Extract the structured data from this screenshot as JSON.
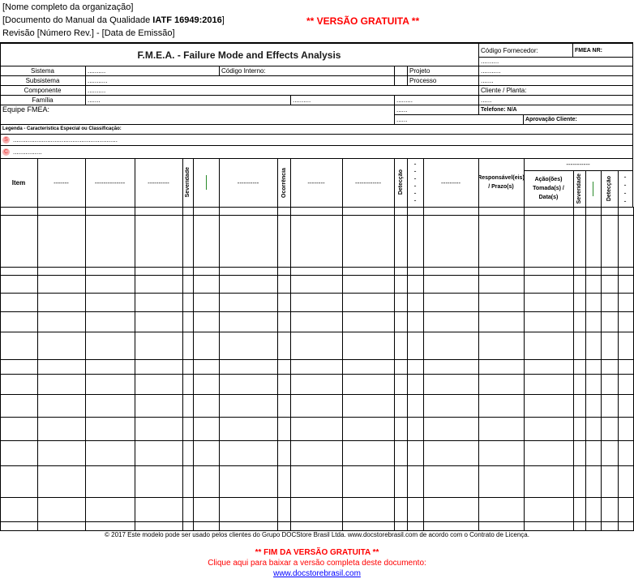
{
  "header": {
    "org": "[Nome completo da organização]",
    "doc_prefix": "[Documento do Manual da Qualidade ",
    "doc_std": "IATF 16949:2016",
    "doc_suffix": "]",
    "revision": "Revisão [Número Rev.] - [Data de Emissão]",
    "free_version": "** VERSÃO GRATUITA **"
  },
  "form": {
    "title": "F.M.E.A.  - Failure Mode and Effects Analysis",
    "supplier_code": "Código Fornecedor:",
    "fmea_nr": "FMEA NR:",
    "supplier_value": "..........",
    "system_label": "Sistema",
    "system_value": "..........",
    "internal_code": "Código Interno:",
    "project": "Projeto",
    "project_value": "...........",
    "subsystem_label": "Subsistema",
    "subsystem_value": "...........",
    "process": "Processo",
    "process_value": ".......",
    "component_label": "Componente",
    "component_value": "..........",
    "client_plant": "Cliente / Planta:",
    "family_label": "Família",
    "family_value": ".......",
    "family_extra": "..........",
    "family_extra2": ".........",
    "client_value": "......",
    "team": "Equipe FMEA:",
    "team_v1": "......",
    "team_v2": "......",
    "phone": "Telefone: N/A",
    "client_approval": "Aprovação Cliente:",
    "legend": "Legenda - Caracteristica Especial ou Classificação:",
    "legend_s_icon": "S",
    "legend_s": "..........................................................",
    "legend_c_icon": "C",
    "legend_c": "................"
  },
  "columns": {
    "item": "Item",
    "c2": "-------",
    "c3": "--------------",
    "c4": "----------",
    "severity": "Severidade",
    "c7": "----------",
    "occurrence": "Ocorrência",
    "c9": "--------",
    "c10": "------------",
    "detection": "Detecção",
    "dashes": "- - - - - -",
    "c13": "---------",
    "responsible": "Responsável(eis) / Prazo(s)",
    "group": "-----------",
    "actions": "Ação(ões) Tomada(s) / Data(s)",
    "severity2": "Severidade",
    "detection2": "Detecção",
    "dashes2": "- - - -"
  },
  "footer": {
    "copyright": "© 2017 Este modelo pode ser usado pelos clientes do Grupo DOCStore Brasil Ltda. www.docstorebrasil.com de acordo com o Contrato de Licença.",
    "end_free": "** FIM DA VERSÃO GRATUITA **",
    "click_here": "Clique aqui para baixar a versão completa deste documento:",
    "link": "www.docstorebrasil.com"
  }
}
